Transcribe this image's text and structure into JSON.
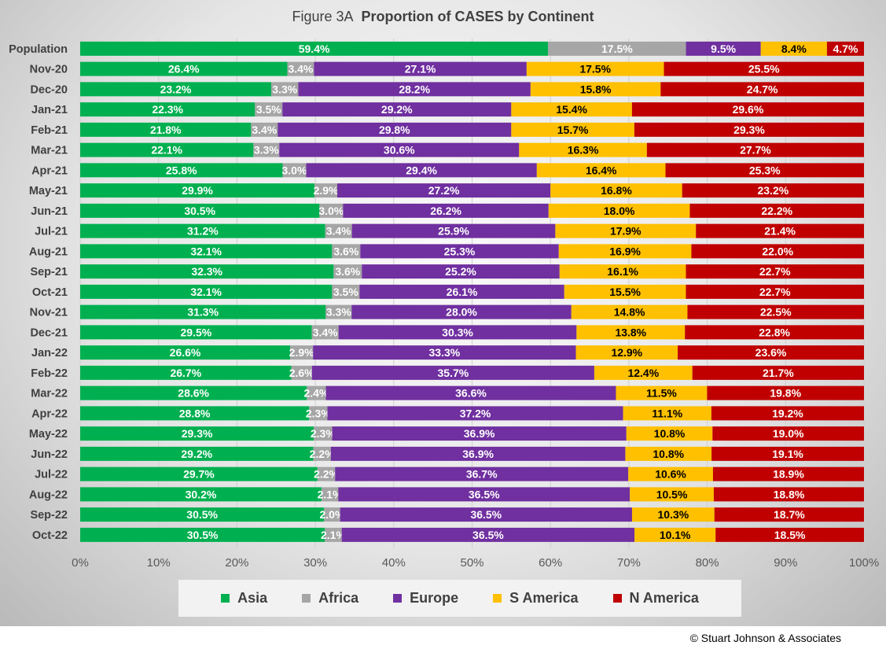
{
  "title_prefix": "Figure  3A",
  "title_main": "Proportion of CASES by Continent",
  "copyright": "© Stuart Johnson & Associates",
  "chart_data": {
    "type": "bar",
    "orientation": "horizontal",
    "stacked": "percent",
    "categories": [
      "Population",
      "Nov-20",
      "Dec-20",
      "Jan-21",
      "Feb-21",
      "Mar-21",
      "Apr-21",
      "May-21",
      "Jun-21",
      "Jul-21",
      "Aug-21",
      "Sep-21",
      "Oct-21",
      "Nov-21",
      "Dec-21",
      "Jan-22",
      "Feb-22",
      "Mar-22",
      "Apr-22",
      "May-22",
      "Jun-22",
      "Jul-22",
      "Aug-22",
      "Sep-22",
      "Oct-22"
    ],
    "series": [
      {
        "name": "Asia",
        "color": "#00b050",
        "label_color": "#ffffff",
        "values": [
          59.4,
          26.4,
          23.2,
          22.3,
          21.8,
          22.1,
          25.8,
          29.9,
          30.5,
          31.2,
          32.1,
          32.3,
          32.1,
          31.3,
          29.5,
          26.6,
          26.7,
          28.6,
          28.8,
          29.3,
          29.2,
          29.7,
          30.2,
          30.5,
          30.5
        ]
      },
      {
        "name": "Africa",
        "color": "#a6a6a6",
        "label_color": "#ffffff",
        "values": [
          17.5,
          3.4,
          3.3,
          3.5,
          3.4,
          3.3,
          3.0,
          2.9,
          3.0,
          3.4,
          3.6,
          3.6,
          3.5,
          3.3,
          3.4,
          2.9,
          2.6,
          2.4,
          2.3,
          2.3,
          2.2,
          2.2,
          2.1,
          2.0,
          2.1
        ]
      },
      {
        "name": "Europe",
        "color": "#7030a0",
        "label_color": "#ffffff",
        "values": [
          9.5,
          27.1,
          28.2,
          29.2,
          29.8,
          30.6,
          29.4,
          27.2,
          26.2,
          25.9,
          25.3,
          25.2,
          26.1,
          28.0,
          30.3,
          33.3,
          35.7,
          36.6,
          37.2,
          36.9,
          36.9,
          36.7,
          36.5,
          36.5,
          36.5
        ]
      },
      {
        "name": "S America",
        "color": "#ffc000",
        "label_color": "#000000",
        "values": [
          8.4,
          17.5,
          15.8,
          15.4,
          15.7,
          16.3,
          16.4,
          16.8,
          18.0,
          17.9,
          16.9,
          16.1,
          15.5,
          14.8,
          13.8,
          12.9,
          12.4,
          11.5,
          11.1,
          10.8,
          10.8,
          10.6,
          10.5,
          10.3,
          10.1
        ]
      },
      {
        "name": "N America",
        "color": "#c00000",
        "label_color": "#ffffff",
        "values": [
          4.7,
          25.5,
          24.7,
          29.6,
          29.3,
          27.7,
          25.3,
          23.2,
          22.2,
          21.4,
          22.0,
          22.7,
          22.7,
          22.5,
          22.8,
          23.6,
          21.7,
          19.8,
          19.2,
          19.0,
          19.1,
          18.9,
          18.8,
          18.7,
          18.5
        ]
      }
    ],
    "xlim": [
      0,
      100
    ],
    "x_ticks": [
      "0%",
      "10%",
      "20%",
      "30%",
      "40%",
      "50%",
      "60%",
      "70%",
      "80%",
      "90%",
      "100%"
    ],
    "grid": true,
    "legend": "bottom"
  }
}
